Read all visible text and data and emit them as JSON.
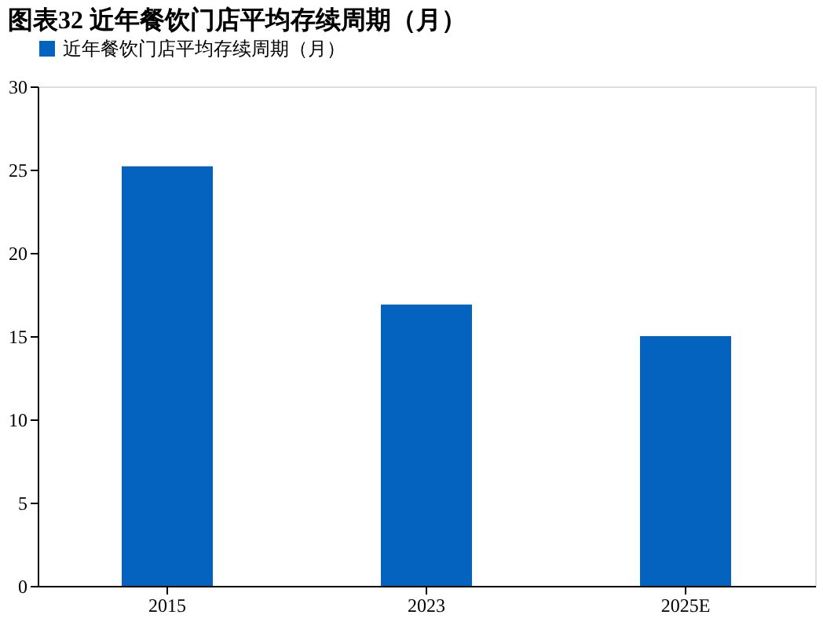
{
  "chart_data": {
    "type": "bar",
    "title": "图表32  近年餐饮门店平均存续周期（月）",
    "categories": [
      "2015",
      "2023",
      "2025E"
    ],
    "series": [
      {
        "name": "近年餐饮门店平均存续周期（月）",
        "color": "#0563c0",
        "values": [
          25.2,
          16.9,
          15.0
        ]
      }
    ],
    "ylim": [
      0,
      30
    ],
    "yticks": [
      0,
      5,
      10,
      15,
      20,
      25,
      30
    ],
    "grid": false,
    "legend": "top"
  }
}
